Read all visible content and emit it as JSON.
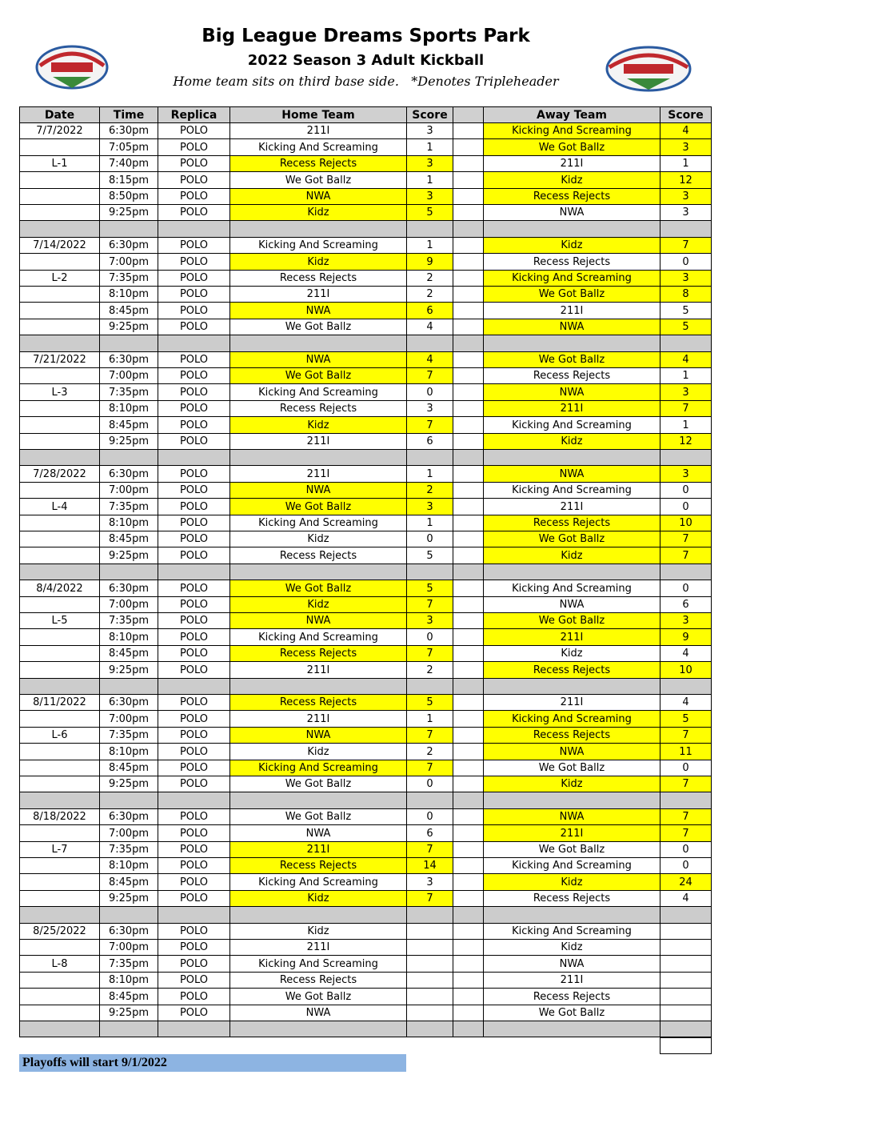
{
  "header": {
    "title": "Big League Dreams Sports Park",
    "subtitle": "2022 Season 3 Adult Kickball",
    "note": "Home team sits on third base side.   *Denotes Tripleheader"
  },
  "table": {
    "columns": [
      "Date",
      "Time",
      "Replica",
      "Home Team",
      "Score",
      "Away Team",
      "Score"
    ],
    "weeks": [
      {
        "date": "7/7/2022",
        "label": "L-1",
        "games": [
          {
            "time": "6:30pm",
            "replica": "POLO",
            "home": "211I",
            "home_score": 3,
            "away": "Kicking And Screaming",
            "away_score": 4
          },
          {
            "time": "7:05pm",
            "replica": "POLO",
            "home": "Kicking And Screaming",
            "home_score": 1,
            "away": "We Got Ballz",
            "away_score": 3
          },
          {
            "time": "7:40pm",
            "replica": "POLO",
            "home": "Recess Rejects",
            "home_score": 3,
            "away": "211I",
            "away_score": 1
          },
          {
            "time": "8:15pm",
            "replica": "POLO",
            "home": "We Got Ballz",
            "home_score": 1,
            "away": "Kidz",
            "away_score": 12
          },
          {
            "time": "8:50pm",
            "replica": "POLO",
            "home": "NWA",
            "home_score": 3,
            "away": "Recess Rejects",
            "away_score": 3
          },
          {
            "time": "9:25pm",
            "replica": "POLO",
            "home": "Kidz",
            "home_score": 5,
            "away": "NWA",
            "away_score": 3
          }
        ]
      },
      {
        "date": "7/14/2022",
        "label": "L-2",
        "games": [
          {
            "time": "6:30pm",
            "replica": "POLO",
            "home": "Kicking And Screaming",
            "home_score": 1,
            "away": "Kidz",
            "away_score": 7
          },
          {
            "time": "7:00pm",
            "replica": "POLO",
            "home": "Kidz",
            "home_score": 9,
            "away": "Recess Rejects",
            "away_score": 0
          },
          {
            "time": "7:35pm",
            "replica": "POLO",
            "home": "Recess Rejects",
            "home_score": 2,
            "away": "Kicking And Screaming",
            "away_score": 3
          },
          {
            "time": "8:10pm",
            "replica": "POLO",
            "home": "211I",
            "home_score": 2,
            "away": "We Got Ballz",
            "away_score": 8
          },
          {
            "time": "8:45pm",
            "replica": "POLO",
            "home": "NWA",
            "home_score": 6,
            "away": "211I",
            "away_score": 5
          },
          {
            "time": "9:25pm",
            "replica": "POLO",
            "home": "We Got Ballz",
            "home_score": 4,
            "away": "NWA",
            "away_score": 5
          }
        ]
      },
      {
        "date": "7/21/2022",
        "label": "L-3",
        "games": [
          {
            "time": "6:30pm",
            "replica": "POLO",
            "home": "NWA",
            "home_score": 4,
            "away": "We Got Ballz",
            "away_score": 4
          },
          {
            "time": "7:00pm",
            "replica": "POLO",
            "home": "We Got Ballz",
            "home_score": 7,
            "away": "Recess Rejects",
            "away_score": 1
          },
          {
            "time": "7:35pm",
            "replica": "POLO",
            "home": "Kicking And Screaming",
            "home_score": 0,
            "away": "NWA",
            "away_score": 3
          },
          {
            "time": "8:10pm",
            "replica": "POLO",
            "home": "Recess Rejects",
            "home_score": 3,
            "away": "211I",
            "away_score": 7
          },
          {
            "time": "8:45pm",
            "replica": "POLO",
            "home": "Kidz",
            "home_score": 7,
            "away": "Kicking And Screaming",
            "away_score": 1
          },
          {
            "time": "9:25pm",
            "replica": "POLO",
            "home": "211I",
            "home_score": 6,
            "away": "Kidz",
            "away_score": 12
          }
        ]
      },
      {
        "date": "7/28/2022",
        "label": "L-4",
        "games": [
          {
            "time": "6:30pm",
            "replica": "POLO",
            "home": "211I",
            "home_score": 1,
            "away": "NWA",
            "away_score": 3
          },
          {
            "time": "7:00pm",
            "replica": "POLO",
            "home": "NWA",
            "home_score": 2,
            "away": "Kicking And Screaming",
            "away_score": 0
          },
          {
            "time": "7:35pm",
            "replica": "POLO",
            "home": "We Got Ballz",
            "home_score": 3,
            "away": "211I",
            "away_score": 0
          },
          {
            "time": "8:10pm",
            "replica": "POLO",
            "home": "Kicking And Screaming",
            "home_score": 1,
            "away": "Recess Rejects",
            "away_score": 10
          },
          {
            "time": "8:45pm",
            "replica": "POLO",
            "home": "Kidz",
            "home_score": 0,
            "away": "We Got Ballz",
            "away_score": 7
          },
          {
            "time": "9:25pm",
            "replica": "POLO",
            "home": "Recess Rejects",
            "home_score": 5,
            "away": "Kidz",
            "away_score": 7
          }
        ]
      },
      {
        "date": "8/4/2022",
        "label": "L-5",
        "games": [
          {
            "time": "6:30pm",
            "replica": "POLO",
            "home": "We Got Ballz",
            "home_score": 5,
            "away": "Kicking And Screaming",
            "away_score": 0
          },
          {
            "time": "7:00pm",
            "replica": "POLO",
            "home": "Kidz",
            "home_score": 7,
            "away": "NWA",
            "away_score": 6
          },
          {
            "time": "7:35pm",
            "replica": "POLO",
            "home": "NWA",
            "home_score": 3,
            "away": "We Got Ballz",
            "away_score": 3
          },
          {
            "time": "8:10pm",
            "replica": "POLO",
            "home": "Kicking And Screaming",
            "home_score": 0,
            "away": "211I",
            "away_score": 9
          },
          {
            "time": "8:45pm",
            "replica": "POLO",
            "home": "Recess Rejects",
            "home_score": 7,
            "away": "Kidz",
            "away_score": 4
          },
          {
            "time": "9:25pm",
            "replica": "POLO",
            "home": "211I",
            "home_score": 2,
            "away": "Recess Rejects",
            "away_score": 10
          }
        ]
      },
      {
        "date": "8/11/2022",
        "label": "L-6",
        "games": [
          {
            "time": "6:30pm",
            "replica": "POLO",
            "home": "Recess Rejects",
            "home_score": 5,
            "away": "211I",
            "away_score": 4
          },
          {
            "time": "7:00pm",
            "replica": "POLO",
            "home": "211I",
            "home_score": 1,
            "away": "Kicking And Screaming",
            "away_score": 5
          },
          {
            "time": "7:35pm",
            "replica": "POLO",
            "home": "NWA",
            "home_score": 7,
            "away": "Recess Rejects",
            "away_score": 7
          },
          {
            "time": "8:10pm",
            "replica": "POLO",
            "home": "Kidz",
            "home_score": 2,
            "away": "NWA",
            "away_score": 11
          },
          {
            "time": "8:45pm",
            "replica": "POLO",
            "home": "Kicking And Screaming",
            "home_score": 7,
            "away": "We Got Ballz",
            "away_score": 0
          },
          {
            "time": "9:25pm",
            "replica": "POLO",
            "home": "We Got Ballz",
            "home_score": 0,
            "away": "Kidz",
            "away_score": 7
          }
        ]
      },
      {
        "date": "8/18/2022",
        "label": "L-7",
        "games": [
          {
            "time": "6:30pm",
            "replica": "POLO",
            "home": "We Got Ballz",
            "home_score": 0,
            "away": "NWA",
            "away_score": 7
          },
          {
            "time": "7:00pm",
            "replica": "POLO",
            "home": "NWA",
            "home_score": 6,
            "away": "211I",
            "away_score": 7
          },
          {
            "time": "7:35pm",
            "replica": "POLO",
            "home": "211I",
            "home_score": 7,
            "away": "We Got Ballz",
            "away_score": 0
          },
          {
            "time": "8:10pm",
            "replica": "POLO",
            "home": "Recess Rejects",
            "home_score": 14,
            "away": "Kicking And Screaming",
            "away_score": 0
          },
          {
            "time": "8:45pm",
            "replica": "POLO",
            "home": "Kicking And Screaming",
            "home_score": 3,
            "away": "Kidz",
            "away_score": 24
          },
          {
            "time": "9:25pm",
            "replica": "POLO",
            "home": "Kidz",
            "home_score": 7,
            "away": "Recess Rejects",
            "away_score": 4
          }
        ]
      },
      {
        "date": "8/25/2022",
        "label": "L-8",
        "games": [
          {
            "time": "6:30pm",
            "replica": "POLO",
            "home": "Kidz",
            "away": "Kicking And Screaming"
          },
          {
            "time": "7:00pm",
            "replica": "POLO",
            "home": "211I",
            "away": "Kidz"
          },
          {
            "time": "7:35pm",
            "replica": "POLO",
            "home": "Kicking And Screaming",
            "away": "NWA"
          },
          {
            "time": "8:10pm",
            "replica": "POLO",
            "home": "Recess Rejects",
            "away": "211I"
          },
          {
            "time": "8:45pm",
            "replica": "POLO",
            "home": "We Got Ballz",
            "away": "Recess Rejects"
          },
          {
            "time": "9:25pm",
            "replica": "POLO",
            "home": "NWA",
            "away": "We Got Ballz"
          }
        ]
      }
    ]
  },
  "footer": {
    "text": "Playoffs will start 9/1/2022"
  }
}
